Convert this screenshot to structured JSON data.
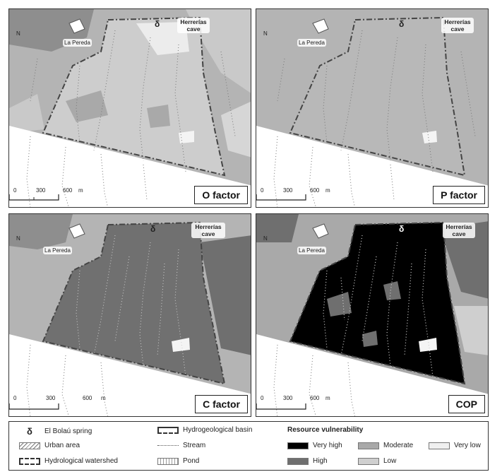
{
  "panels": [
    {
      "factor_label": "O factor",
      "vulnerability": "moderate-low"
    },
    {
      "factor_label": "P factor",
      "vulnerability": "moderate"
    },
    {
      "factor_label": "C factor",
      "vulnerability": "high"
    },
    {
      "factor_label": "COP",
      "vulnerability": "very-high"
    }
  ],
  "map_labels": {
    "place": "La Pereda",
    "cave": "Herrerías cave",
    "north": "N",
    "spring_symbol": "δ"
  },
  "scale": {
    "ticks": [
      "0",
      "300",
      "600"
    ],
    "unit": "m"
  },
  "legend": {
    "spring": "El Bolaú spring",
    "urban": "Urban area",
    "watershed": "Hydrological watershed",
    "basin": "Hydrogeological basin",
    "stream": "Stream",
    "pond": "Pond",
    "vulnerability_title": "Resource vulnerability",
    "classes": [
      {
        "label": "Very high",
        "color": "#000000"
      },
      {
        "label": "High",
        "color": "#6f6f6f"
      },
      {
        "label": "Moderate",
        "color": "#a9a9a9"
      },
      {
        "label": "Low",
        "color": "#cfcfcf"
      },
      {
        "label": "Very low",
        "color": "#f0f0f0"
      }
    ]
  },
  "colors": {
    "background_grey": "#b4b4b4",
    "light_grey": "#d6d6d6",
    "mid_grey": "#9e9e9e",
    "dark_grey": "#6f6f6f",
    "black": "#000000",
    "white": "#ffffff"
  }
}
